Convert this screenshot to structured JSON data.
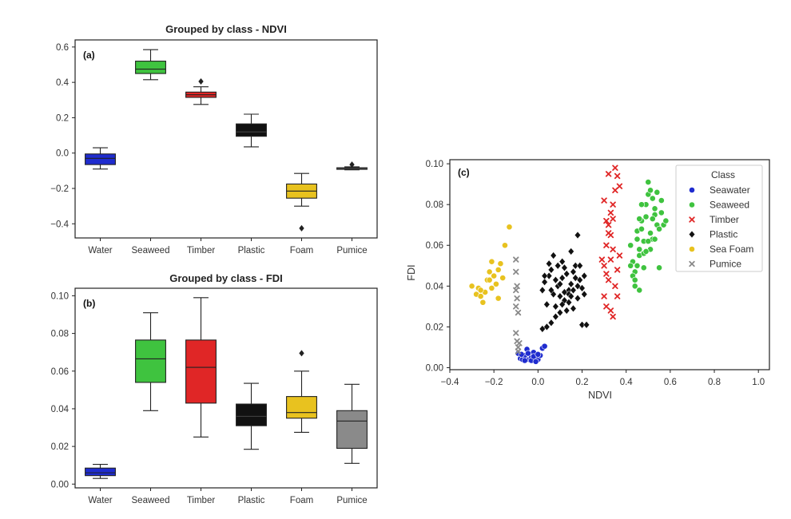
{
  "chart_data": [
    {
      "type": "box",
      "panel": "(a)",
      "title": "Grouped by class - NDVI",
      "categories": [
        "Water",
        "Seaweed",
        "Timber",
        "Plastic",
        "Foam",
        "Pumice"
      ],
      "ylim": [
        -0.48,
        0.64
      ],
      "yticks": [
        -0.4,
        -0.2,
        0.0,
        0.2,
        0.4,
        0.6
      ],
      "ytick_labels": [
        "−0.4",
        "−0.2",
        "0.0",
        "0.2",
        "0.4",
        "0.6"
      ],
      "boxes": [
        {
          "class": "Water",
          "color": "#1f2ccf",
          "wlo": -0.09,
          "q1": -0.065,
          "med": -0.03,
          "q3": -0.005,
          "whi": 0.03,
          "fliers": []
        },
        {
          "class": "Seaweed",
          "color": "#3fc33f",
          "wlo": 0.415,
          "q1": 0.45,
          "med": 0.475,
          "q3": 0.52,
          "whi": 0.585,
          "fliers": []
        },
        {
          "class": "Timber",
          "color": "#e02626",
          "wlo": 0.275,
          "q1": 0.315,
          "med": 0.33,
          "q3": 0.345,
          "whi": 0.375,
          "fliers": [
            0.405
          ]
        },
        {
          "class": "Plastic",
          "color": "#111111",
          "wlo": 0.035,
          "q1": 0.095,
          "med": 0.12,
          "q3": 0.165,
          "whi": 0.22,
          "fliers": []
        },
        {
          "class": "Foam",
          "color": "#e8c21f",
          "wlo": -0.3,
          "q1": -0.255,
          "med": -0.215,
          "q3": -0.175,
          "whi": -0.115,
          "fliers": [
            -0.425
          ]
        },
        {
          "class": "Pumice",
          "color": "#111111",
          "wlo": -0.095,
          "q1": -0.092,
          "med": -0.088,
          "q3": -0.083,
          "whi": -0.078,
          "fliers": [
            -0.065
          ]
        }
      ]
    },
    {
      "type": "box",
      "panel": "(b)",
      "title": "Grouped by class - FDI",
      "categories": [
        "Water",
        "Seaweed",
        "Timber",
        "Plastic",
        "Foam",
        "Pumice"
      ],
      "ylim": [
        -0.002,
        0.104
      ],
      "yticks": [
        0.0,
        0.02,
        0.04,
        0.06,
        0.08,
        0.1
      ],
      "ytick_labels": [
        "0.00",
        "0.02",
        "0.04",
        "0.06",
        "0.08",
        "0.10"
      ],
      "boxes": [
        {
          "class": "Water",
          "color": "#1f2ccf",
          "wlo": 0.003,
          "q1": 0.0045,
          "med": 0.006,
          "q3": 0.0085,
          "whi": 0.0105,
          "fliers": []
        },
        {
          "class": "Seaweed",
          "color": "#3fc33f",
          "wlo": 0.039,
          "q1": 0.054,
          "med": 0.0665,
          "q3": 0.0765,
          "whi": 0.091,
          "fliers": []
        },
        {
          "class": "Timber",
          "color": "#e02626",
          "wlo": 0.025,
          "q1": 0.043,
          "med": 0.062,
          "q3": 0.0765,
          "whi": 0.099,
          "fliers": []
        },
        {
          "class": "Plastic",
          "color": "#111111",
          "wlo": 0.0185,
          "q1": 0.031,
          "med": 0.036,
          "q3": 0.0425,
          "whi": 0.0535,
          "fliers": []
        },
        {
          "class": "Foam",
          "color": "#e8c21f",
          "wlo": 0.0275,
          "q1": 0.035,
          "med": 0.038,
          "q3": 0.0465,
          "whi": 0.06,
          "fliers": [
            0.0695
          ]
        },
        {
          "class": "Pumice",
          "color": "#8a8a8a",
          "wlo": 0.011,
          "q1": 0.019,
          "med": 0.0335,
          "q3": 0.039,
          "whi": 0.053,
          "fliers": []
        }
      ]
    },
    {
      "type": "scatter",
      "panel": "(c)",
      "xlabel": "NDVI",
      "ylabel": "FDI",
      "xlim": [
        -0.4,
        1.05
      ],
      "ylim": [
        -0.001,
        0.102
      ],
      "xticks": [
        -0.4,
        -0.2,
        0.0,
        0.2,
        0.4,
        0.6,
        0.8,
        1.0
      ],
      "xtick_labels": [
        "−0.4",
        "−0.2",
        "0.0",
        "0.2",
        "0.4",
        "0.6",
        "0.8",
        "1.0"
      ],
      "yticks": [
        0.0,
        0.02,
        0.04,
        0.06,
        0.08,
        0.1
      ],
      "ytick_labels": [
        "0.00",
        "0.02",
        "0.04",
        "0.06",
        "0.08",
        "0.10"
      ],
      "legend": {
        "title": "Class",
        "position": "top-right"
      },
      "series": [
        {
          "name": "Seawater",
          "color": "#1f2ccf",
          "marker": "circle",
          "points": [
            [
              -0.09,
              0.007
            ],
            [
              -0.08,
              0.0045
            ],
            [
              -0.07,
              0.004
            ],
            [
              -0.06,
              0.006
            ],
            [
              -0.05,
              0.009
            ],
            [
              -0.04,
              0.004
            ],
            [
              -0.03,
              0.005
            ],
            [
              -0.02,
              0.0075
            ],
            [
              -0.01,
              0.0045
            ],
            [
              0.0,
              0.004
            ],
            [
              0.01,
              0.006
            ],
            [
              0.02,
              0.0095
            ],
            [
              -0.06,
              0.0035
            ],
            [
              -0.03,
              0.0035
            ],
            [
              -0.02,
              0.0055
            ],
            [
              -0.075,
              0.0065
            ],
            [
              0.0,
              0.0065
            ],
            [
              -0.01,
              0.003
            ],
            [
              0.03,
              0.0105
            ],
            [
              -0.045,
              0.007
            ]
          ]
        },
        {
          "name": "Seaweed",
          "color": "#3fc33f",
          "marker": "circle",
          "points": [
            [
              0.42,
              0.06
            ],
            [
              0.43,
              0.052
            ],
            [
              0.44,
              0.047
            ],
            [
              0.45,
              0.067
            ],
            [
              0.46,
              0.055
            ],
            [
              0.47,
              0.072
            ],
            [
              0.48,
              0.062
            ],
            [
              0.49,
              0.08
            ],
            [
              0.5,
              0.085
            ],
            [
              0.51,
              0.058
            ],
            [
              0.52,
              0.063
            ],
            [
              0.53,
              0.075
            ],
            [
              0.54,
              0.07
            ],
            [
              0.55,
              0.068
            ],
            [
              0.56,
              0.082
            ],
            [
              0.44,
              0.04
            ],
            [
              0.46,
              0.038
            ],
            [
              0.48,
              0.056
            ],
            [
              0.5,
              0.091
            ],
            [
              0.52,
              0.083
            ],
            [
              0.47,
              0.068
            ],
            [
              0.45,
              0.05
            ],
            [
              0.43,
              0.045
            ],
            [
              0.49,
              0.074
            ],
            [
              0.51,
              0.066
            ],
            [
              0.53,
              0.078
            ],
            [
              0.55,
              0.049
            ],
            [
              0.57,
              0.07
            ],
            [
              0.58,
              0.072
            ],
            [
              0.46,
              0.058
            ],
            [
              0.48,
              0.049
            ],
            [
              0.5,
              0.062
            ],
            [
              0.54,
              0.086
            ],
            [
              0.44,
              0.043
            ],
            [
              0.45,
              0.063
            ],
            [
              0.47,
              0.08
            ],
            [
              0.52,
              0.073
            ],
            [
              0.56,
              0.076
            ],
            [
              0.53,
              0.063
            ],
            [
              0.42,
              0.05
            ],
            [
              0.49,
              0.057
            ],
            [
              0.51,
              0.087
            ],
            [
              0.46,
              0.073
            ]
          ]
        },
        {
          "name": "Timber",
          "color": "#e02626",
          "marker": "x",
          "points": [
            [
              0.3,
              0.05
            ],
            [
              0.31,
              0.06
            ],
            [
              0.32,
              0.07
            ],
            [
              0.33,
              0.065
            ],
            [
              0.34,
              0.08
            ],
            [
              0.35,
              0.098
            ],
            [
              0.36,
              0.094
            ],
            [
              0.37,
              0.089
            ],
            [
              0.3,
              0.082
            ],
            [
              0.31,
              0.072
            ],
            [
              0.32,
              0.043
            ],
            [
              0.33,
              0.028
            ],
            [
              0.34,
              0.025
            ],
            [
              0.35,
              0.04
            ],
            [
              0.36,
              0.035
            ],
            [
              0.37,
              0.055
            ],
            [
              0.32,
              0.095
            ],
            [
              0.33,
              0.076
            ],
            [
              0.34,
              0.058
            ],
            [
              0.31,
              0.046
            ],
            [
              0.29,
              0.053
            ],
            [
              0.3,
              0.035
            ],
            [
              0.36,
              0.048
            ],
            [
              0.35,
              0.087
            ],
            [
              0.33,
              0.053
            ],
            [
              0.31,
              0.03
            ],
            [
              0.34,
              0.073
            ],
            [
              0.32,
              0.066
            ]
          ]
        },
        {
          "name": "Plastic",
          "color": "#111111",
          "marker": "diamond",
          "points": [
            [
              0.02,
              0.038
            ],
            [
              0.03,
              0.042
            ],
            [
              0.04,
              0.031
            ],
            [
              0.05,
              0.045
            ],
            [
              0.06,
              0.048
            ],
            [
              0.07,
              0.036
            ],
            [
              0.08,
              0.03
            ],
            [
              0.09,
              0.04
            ],
            [
              0.1,
              0.035
            ],
            [
              0.11,
              0.044
            ],
            [
              0.12,
              0.037
            ],
            [
              0.13,
              0.028
            ],
            [
              0.14,
              0.032
            ],
            [
              0.15,
              0.041
            ],
            [
              0.16,
              0.047
            ],
            [
              0.17,
              0.05
            ],
            [
              0.18,
              0.065
            ],
            [
              0.19,
              0.043
            ],
            [
              0.2,
              0.039
            ],
            [
              0.21,
              0.036
            ],
            [
              0.04,
              0.02
            ],
            [
              0.06,
              0.022
            ],
            [
              0.08,
              0.025
            ],
            [
              0.1,
              0.027
            ],
            [
              0.12,
              0.033
            ],
            [
              0.14,
              0.038
            ],
            [
              0.16,
              0.029
            ],
            [
              0.18,
              0.034
            ],
            [
              0.2,
              0.021
            ],
            [
              0.03,
              0.045
            ],
            [
              0.05,
              0.051
            ],
            [
              0.07,
              0.055
            ],
            [
              0.09,
              0.05
            ],
            [
              0.11,
              0.052
            ],
            [
              0.13,
              0.046
            ],
            [
              0.15,
              0.057
            ],
            [
              0.17,
              0.044
            ],
            [
              0.19,
              0.05
            ],
            [
              0.21,
              0.045
            ],
            [
              0.06,
              0.038
            ],
            [
              0.1,
              0.041
            ],
            [
              0.14,
              0.036
            ],
            [
              0.18,
              0.04
            ],
            [
              0.08,
              0.043
            ],
            [
              0.12,
              0.049
            ],
            [
              0.16,
              0.038
            ],
            [
              0.22,
              0.021
            ],
            [
              0.02,
              0.019
            ],
            [
              0.11,
              0.031
            ],
            [
              0.15,
              0.035
            ]
          ]
        },
        {
          "name": "Sea Foam",
          "color": "#e8c21f",
          "marker": "circle",
          "points": [
            [
              -0.3,
              0.04
            ],
            [
              -0.28,
              0.036
            ],
            [
              -0.27,
              0.039
            ],
            [
              -0.26,
              0.035
            ],
            [
              -0.25,
              0.032
            ],
            [
              -0.24,
              0.037
            ],
            [
              -0.23,
              0.043
            ],
            [
              -0.22,
              0.047
            ],
            [
              -0.21,
              0.052
            ],
            [
              -0.2,
              0.045
            ],
            [
              -0.19,
              0.041
            ],
            [
              -0.18,
              0.048
            ],
            [
              -0.17,
              0.051
            ],
            [
              -0.16,
              0.044
            ],
            [
              -0.15,
              0.06
            ],
            [
              -0.13,
              0.069
            ],
            [
              -0.18,
              0.034
            ],
            [
              -0.26,
              0.038
            ],
            [
              -0.21,
              0.039
            ],
            [
              -0.22,
              0.043
            ]
          ]
        },
        {
          "name": "Pumice",
          "color": "#8a8a8a",
          "marker": "x",
          "points": [
            [
              -0.1,
              0.053
            ],
            [
              -0.1,
              0.047
            ],
            [
              -0.095,
              0.04
            ],
            [
              -0.1,
              0.038
            ],
            [
              -0.095,
              0.034
            ],
            [
              -0.1,
              0.03
            ],
            [
              -0.09,
              0.027
            ],
            [
              -0.1,
              0.017
            ],
            [
              -0.095,
              0.013
            ],
            [
              -0.085,
              0.012
            ],
            [
              -0.09,
              0.01
            ],
            [
              -0.09,
              0.008
            ]
          ]
        }
      ]
    }
  ]
}
